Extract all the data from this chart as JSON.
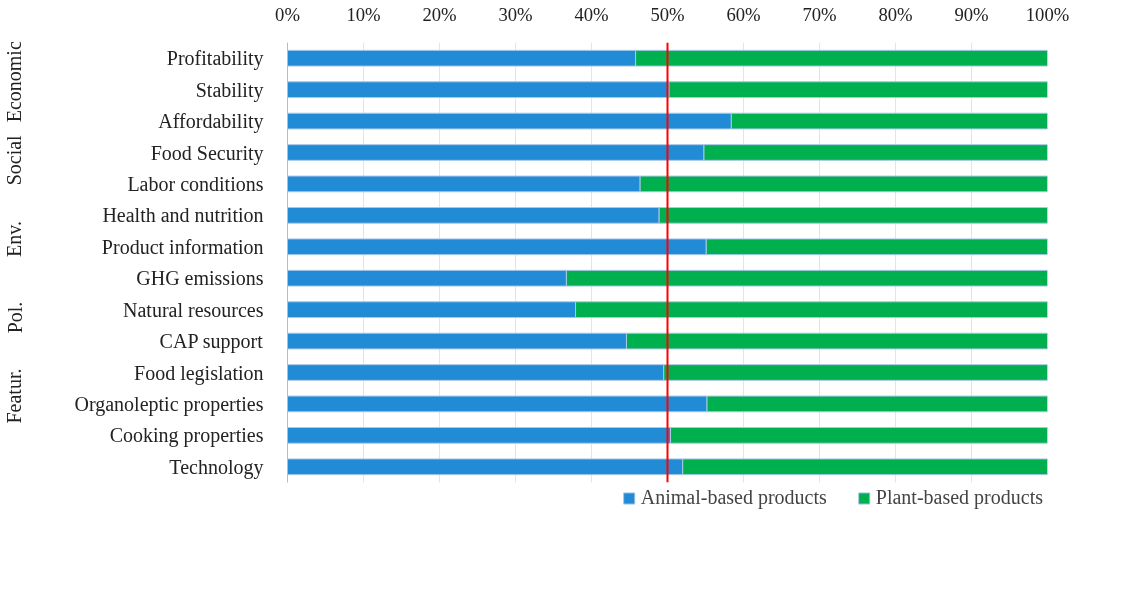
{
  "chart_data": {
    "type": "bar",
    "orientation": "horizontal",
    "stacked": true,
    "categories": [
      "Profitability",
      "Stability",
      "Affordability",
      "Food Security",
      "Labor conditions",
      "Health and nutrition",
      "Product information",
      "GHG emissions",
      "Natural resources",
      "CAP support",
      "Food legislation",
      "Organoleptic properties",
      "Cooking properties",
      "Technology"
    ],
    "series": [
      {
        "name": "Animal-based products",
        "color": "#228bd6",
        "values": [
          45.8,
          50.2,
          58.4,
          54.8,
          46.4,
          48.9,
          55.1,
          36.7,
          37.9,
          44.6,
          49.5,
          55.2,
          50.4,
          52.0
        ]
      },
      {
        "name": "Plant-based products",
        "color": "#00b04f",
        "values": [
          54.2,
          49.8,
          41.6,
          45.2,
          53.6,
          51.1,
          44.9,
          63.3,
          62.1,
          55.4,
          50.5,
          44.8,
          49.6,
          48.0
        ]
      }
    ],
    "xlim": [
      0,
      100
    ],
    "xticks": [
      {
        "value": 0,
        "label": "0%"
      },
      {
        "value": 10,
        "label": "10%"
      },
      {
        "value": 20,
        "label": "20%"
      },
      {
        "value": 30,
        "label": "30%"
      },
      {
        "value": 40,
        "label": "40%"
      },
      {
        "value": 50,
        "label": "50%"
      },
      {
        "value": 60,
        "label": "60%"
      },
      {
        "value": 70,
        "label": "70%"
      },
      {
        "value": 80,
        "label": "80%"
      },
      {
        "value": 90,
        "label": "90%"
      },
      {
        "value": 100,
        "label": "100%"
      }
    ],
    "ref_lines": [
      {
        "axis": "x",
        "value": 50,
        "color": "#ff0000"
      }
    ],
    "annotations": [
      "Economic",
      "Social",
      "Env.",
      "Pol.",
      "Featur."
    ],
    "grid": "x",
    "legend": "bottom"
  }
}
